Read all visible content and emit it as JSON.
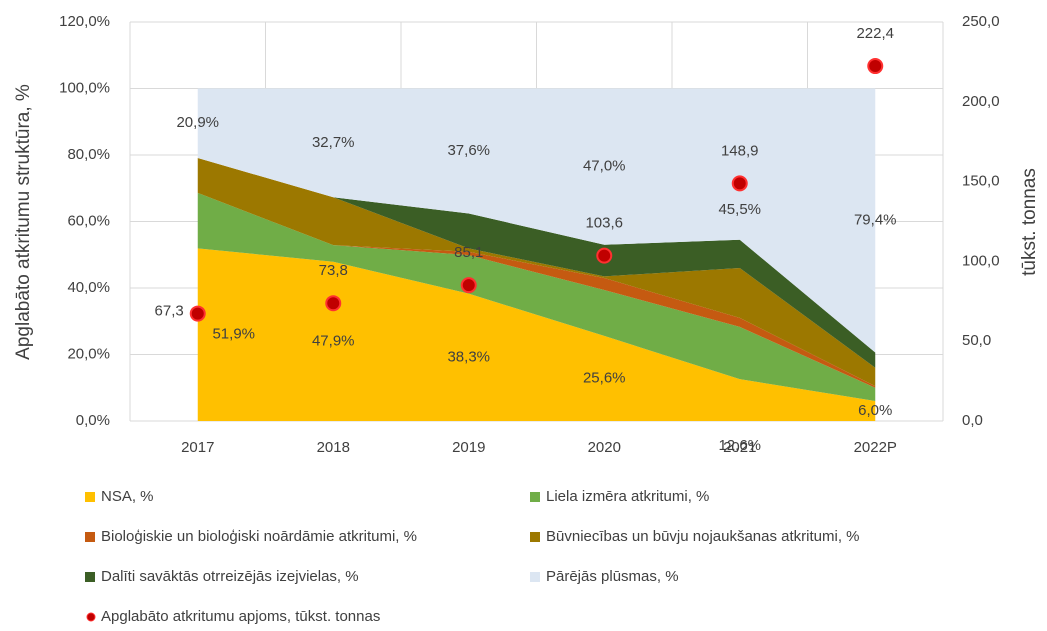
{
  "chart_data": {
    "type": "stacked-area",
    "categories": [
      "2017",
      "2018",
      "2019",
      "2020",
      "2021",
      "2022P"
    ],
    "ylabel": "Apglabāto atkritumu struktūra, %",
    "y2label": "tūkst. tonnas",
    "ylim": [
      0,
      120
    ],
    "yticks": [
      {
        "value": 0,
        "label": "0,0%"
      },
      {
        "value": 20,
        "label": "20,0%"
      },
      {
        "value": 40,
        "label": "40,0%"
      },
      {
        "value": 60,
        "label": "60,0%"
      },
      {
        "value": 80,
        "label": "80,0%"
      },
      {
        "value": 100,
        "label": "100,0%"
      },
      {
        "value": 120,
        "label": "120,0%"
      }
    ],
    "y2lim": [
      0,
      250
    ],
    "y2ticks": [
      {
        "value": 0,
        "label": "0,0"
      },
      {
        "value": 50,
        "label": "50,0"
      },
      {
        "value": 100,
        "label": "100,0"
      },
      {
        "value": 150,
        "label": "150,0"
      },
      {
        "value": 200,
        "label": "200,0"
      },
      {
        "value": 250,
        "label": "250,0"
      }
    ],
    "grid": true,
    "legend": "bottom",
    "series": [
      {
        "name": "NSA, %",
        "color": "#ffc000",
        "values": [
          51.9,
          47.9,
          38.3,
          25.6,
          12.6,
          6.0
        ],
        "value_labels": [
          "51,9%",
          "47,9%",
          "38,3%",
          "25,6%",
          "12,6%",
          "6,0%"
        ]
      },
      {
        "name": "Liela izmēra atkritumi, %",
        "color": "#70ad47",
        "values": [
          16.7,
          5.0,
          11.6,
          13.8,
          15.7,
          4.0
        ]
      },
      {
        "name": "Bioloģiskie un bioloģiski noārdāmie atkritumi, %",
        "color": "#c55a11",
        "values": [
          0,
          0,
          1.0,
          3.6,
          2.7,
          0.5
        ]
      },
      {
        "name": "Būvniecības un būvju nojaukšanas atkritumi, %",
        "color": "#9c7800",
        "values": [
          10.5,
          14.4,
          1.0,
          0.5,
          15.0,
          5.5
        ]
      },
      {
        "name": "Dalīti savāktās otrreizējās izejvielas, %",
        "color": "#3b5e25",
        "values": [
          0,
          0,
          10.5,
          9.5,
          8.5,
          4.6
        ]
      },
      {
        "name": "Pārējās plūsmas, %",
        "color": "#dce6f2",
        "values": [
          20.9,
          32.7,
          37.6,
          47.0,
          45.5,
          79.4
        ],
        "value_labels": [
          "20,9%",
          "32,7%",
          "37,6%",
          "47,0%",
          "45,5%",
          "79,4%"
        ]
      },
      {
        "name": "Apglabāto atkritumu apjoms, tūkst. tonnas",
        "type": "scatter",
        "axis": "y2",
        "color": "#c00000",
        "values": [
          67.3,
          73.8,
          85.1,
          103.6,
          148.9,
          222.4
        ],
        "value_labels": [
          "67,3",
          "73,8",
          "85,1",
          "103,6",
          "148,9",
          "222,4"
        ]
      }
    ]
  }
}
